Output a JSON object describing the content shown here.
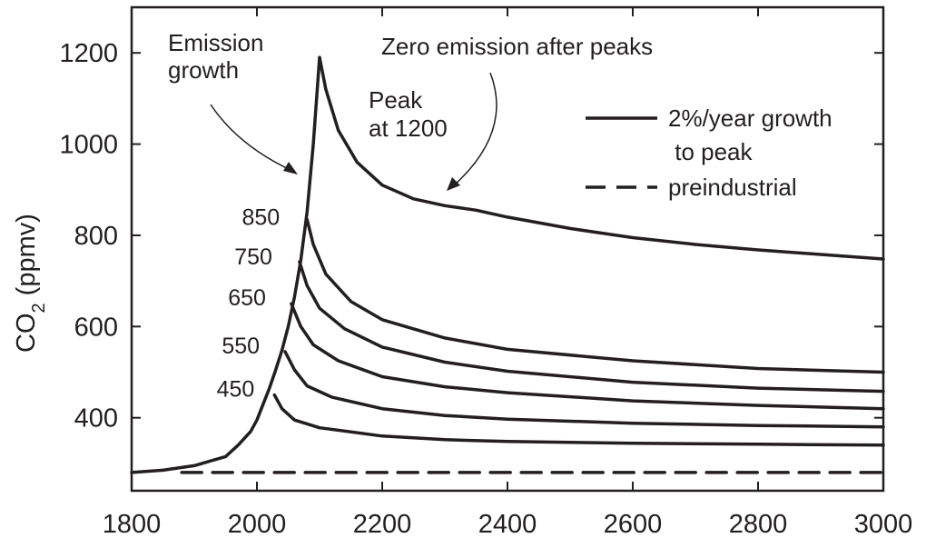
{
  "chart_data": {
    "type": "line",
    "title": "",
    "xlabel": "",
    "ylabel": "CO",
    "ylabel_subscript": "2",
    "ylabel_units": " (ppmv)",
    "xlim": [
      1800,
      3000
    ],
    "ylim": [
      240,
      1300
    ],
    "xticks": [
      1800,
      2000,
      2200,
      2400,
      2600,
      2800,
      3000
    ],
    "yticks": [
      400,
      600,
      800,
      1000,
      1200
    ],
    "grid": false,
    "legend": {
      "placement": "top-right",
      "entries": [
        {
          "label_line1": "2%/year growth",
          "label_line2": " to peak",
          "style": "solid"
        },
        {
          "label_line1": "preindustrial",
          "label_line2": "",
          "style": "dashed"
        }
      ]
    },
    "annotations": [
      {
        "text_line1": "Emission",
        "text_line2": "growth"
      },
      {
        "text_line1": "Peak",
        "text_line2": "at 1200"
      },
      {
        "text_line1": "Zero emission after peaks",
        "text_line2": ""
      }
    ],
    "growth_curve": {
      "x": [
        1800,
        1850,
        1900,
        1950,
        1970,
        1990,
        2000,
        2010,
        2020,
        2030,
        2040,
        2050,
        2060,
        2070,
        2080,
        2090,
        2100
      ],
      "y": [
        280,
        285,
        295,
        315,
        340,
        370,
        395,
        430,
        465,
        505,
        548,
        600,
        665,
        745,
        850,
        1000,
        1190
      ]
    },
    "series": [
      {
        "name": "450",
        "peak_x": 2028,
        "x": [
          2028,
          2040,
          2060,
          2100,
          2200,
          2300,
          2400,
          2600,
          2800,
          3000
        ],
        "y": [
          450,
          420,
          395,
          378,
          360,
          352,
          348,
          344,
          342,
          340
        ]
      },
      {
        "name": "550",
        "peak_x": 2045,
        "x": [
          2045,
          2060,
          2080,
          2120,
          2200,
          2300,
          2400,
          2600,
          2800,
          3000
        ],
        "y": [
          545,
          505,
          470,
          445,
          420,
          405,
          397,
          388,
          383,
          380
        ]
      },
      {
        "name": "650",
        "peak_x": 2055,
        "x": [
          2055,
          2070,
          2090,
          2130,
          2200,
          2300,
          2400,
          2600,
          2800,
          3000
        ],
        "y": [
          650,
          600,
          560,
          525,
          490,
          468,
          455,
          437,
          427,
          420
        ]
      },
      {
        "name": "750",
        "peak_x": 2068,
        "x": [
          2068,
          2080,
          2100,
          2140,
          2200,
          2300,
          2400,
          2600,
          2800,
          3000
        ],
        "y": [
          742,
          690,
          640,
          595,
          555,
          522,
          502,
          478,
          465,
          458
        ]
      },
      {
        "name": "850",
        "peak_x": 2080,
        "x": [
          2080,
          2090,
          2110,
          2150,
          2200,
          2300,
          2400,
          2600,
          2800,
          3000
        ],
        "y": [
          835,
          780,
          715,
          655,
          615,
          575,
          550,
          525,
          508,
          500
        ]
      },
      {
        "name": "Peak at 1200",
        "peak_x": 2100,
        "x": [
          2100,
          2110,
          2130,
          2160,
          2200,
          2250,
          2300,
          2350,
          2400,
          2500,
          2600,
          2700,
          2800,
          2900,
          3000
        ],
        "y": [
          1190,
          1120,
          1030,
          960,
          910,
          880,
          865,
          855,
          840,
          815,
          795,
          780,
          768,
          758,
          748
        ]
      }
    ],
    "preindustrial": {
      "y": 280,
      "x_start": 1880,
      "x_end": 3000
    }
  }
}
